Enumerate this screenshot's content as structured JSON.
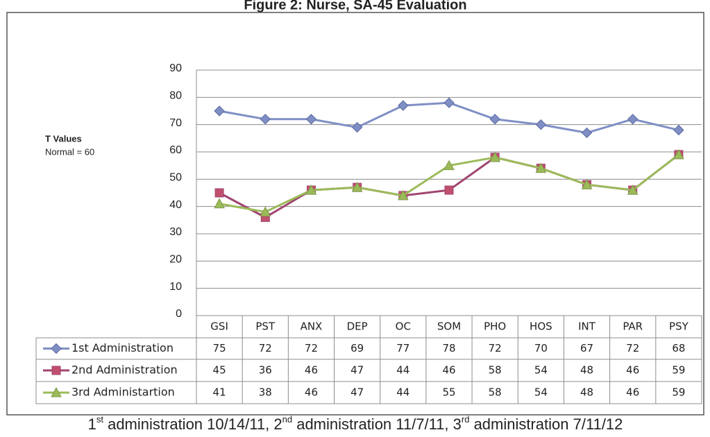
{
  "chart_data": {
    "type": "line",
    "title": "Figure 2: Nurse, SA-45 Evaluation",
    "y_label": "T Values",
    "y_note": "Normal = 60",
    "categories": [
      "GSI",
      "PST",
      "ANX",
      "DEP",
      "OC",
      "SOM",
      "PHO",
      "HOS",
      "INT",
      "PAR",
      "PSY"
    ],
    "series": [
      {
        "name": "1st Administration",
        "color": "#7f8fc5",
        "marker": "diamond",
        "values": [
          75,
          72,
          72,
          69,
          77,
          78,
          72,
          70,
          67,
          72,
          68
        ]
      },
      {
        "name": "2nd Administration",
        "color": "#a04570",
        "marker": "square",
        "values": [
          45,
          36,
          46,
          47,
          44,
          46,
          58,
          54,
          48,
          46,
          59
        ]
      },
      {
        "name": "3rd Administartion",
        "color": "#9bbb59",
        "marker": "triangle",
        "values": [
          41,
          38,
          46,
          47,
          44,
          55,
          58,
          54,
          48,
          46,
          59
        ]
      }
    ],
    "ylim": [
      0,
      90
    ],
    "yticks": [
      0,
      10,
      20,
      30,
      40,
      50,
      60,
      70,
      80,
      90
    ],
    "grid": true,
    "footnote": [
      {
        "number": "1",
        "suffix": "st",
        "text": " administration 10/14/11, "
      },
      {
        "number": "2",
        "suffix": "nd",
        "text": " administration 11/7/11, "
      },
      {
        "number": "3",
        "suffix": "rd",
        "text": " administration 7/11/12"
      }
    ]
  }
}
